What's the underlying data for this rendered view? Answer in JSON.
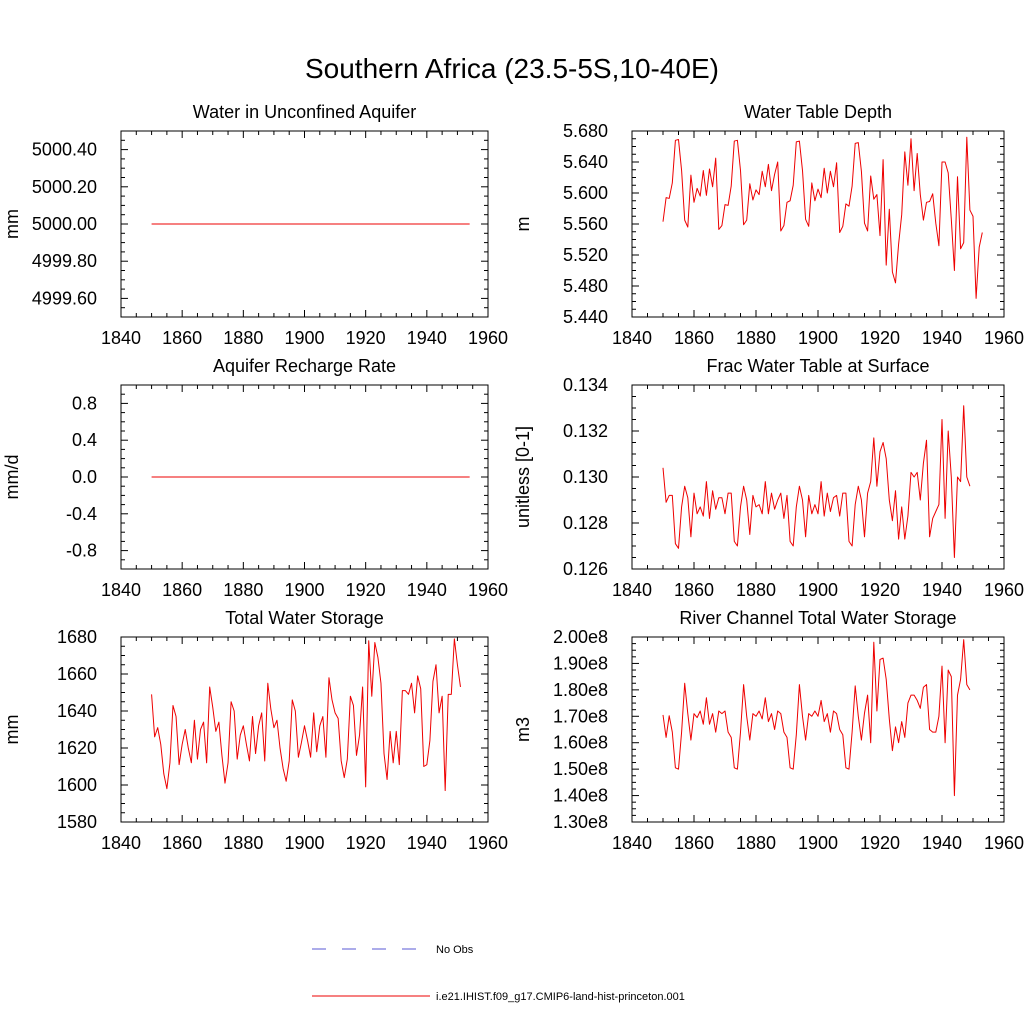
{
  "page": {
    "title": "Southern Africa (23.5-5S,10-40E)"
  },
  "legend": {
    "items": [
      {
        "label": "No Obs",
        "color": "#5a5ad6",
        "dash": "dashed"
      },
      {
        "label": "i.e21.IHIST.f09_g17.CMIP6-land-hist-princeton.001",
        "color": "#ee0000",
        "dash": "solid"
      }
    ]
  },
  "chart_data": [
    {
      "type": "line",
      "title": "Water in Unconfined Aquifer",
      "ylabel": "mm",
      "xlim": [
        1840,
        1960
      ],
      "ylim": [
        4999.5,
        5000.5
      ],
      "yticks": [
        4999.6,
        4999.8,
        5000.0,
        5000.2,
        5000.4
      ],
      "yticklabels": [
        "4999.60",
        "4999.80",
        "5000.00",
        "5000.20",
        "5000.40"
      ],
      "xticks": [
        1840,
        1860,
        1880,
        1900,
        1920,
        1940,
        1960
      ],
      "series": [
        {
          "x_start": 1850,
          "x_end": 1954,
          "constant": 5000.0
        }
      ]
    },
    {
      "type": "line",
      "title": "Water Table Depth",
      "ylabel": "m",
      "xlim": [
        1840,
        1960
      ],
      "ylim": [
        5.44,
        5.68
      ],
      "yticks": [
        5.44,
        5.48,
        5.52,
        5.56,
        5.6,
        5.64,
        5.68
      ],
      "yticklabels": [
        "5.440",
        "5.480",
        "5.520",
        "5.560",
        "5.600",
        "5.640",
        "5.680"
      ],
      "xticks": [
        1840,
        1860,
        1880,
        1900,
        1920,
        1940,
        1960
      ],
      "series": [
        {
          "x_start": 1850,
          "values": [
            5.563,
            5.594,
            5.593,
            5.613,
            5.668,
            5.669,
            5.629,
            5.565,
            5.556,
            5.623,
            5.588,
            5.606,
            5.596,
            5.629,
            5.597,
            5.631,
            5.608,
            5.645,
            5.553,
            5.558,
            5.585,
            5.584,
            5.609,
            5.667,
            5.668,
            5.629,
            5.559,
            5.565,
            5.612,
            5.591,
            5.604,
            5.598,
            5.628,
            5.608,
            5.637,
            5.603,
            5.624,
            5.64,
            5.551,
            5.558,
            5.588,
            5.59,
            5.61,
            5.666,
            5.667,
            5.629,
            5.566,
            5.557,
            5.613,
            5.59,
            5.605,
            5.594,
            5.632,
            5.6,
            5.628,
            5.608,
            5.639,
            5.549,
            5.557,
            5.586,
            5.583,
            5.609,
            5.664,
            5.665,
            5.628,
            5.561,
            5.551,
            5.622,
            5.592,
            5.598,
            5.545,
            5.643,
            5.507,
            5.579,
            5.498,
            5.484,
            5.534,
            5.572,
            5.653,
            5.61,
            5.67,
            5.603,
            5.651,
            5.598,
            5.565,
            5.588,
            5.589,
            5.599,
            5.561,
            5.532,
            5.64,
            5.64,
            5.626,
            5.566,
            5.5,
            5.621,
            5.528,
            5.536,
            5.672,
            5.578,
            5.57,
            5.464,
            5.53,
            5.549
          ]
        }
      ]
    },
    {
      "type": "line",
      "title": "Aquifer Recharge Rate",
      "ylabel": "mm/d",
      "xlim": [
        1840,
        1960
      ],
      "ylim": [
        -1.0,
        1.0
      ],
      "yticks": [
        -0.8,
        -0.4,
        0.0,
        0.4,
        0.8
      ],
      "yticklabels": [
        "-0.8",
        "-0.4",
        "0.0",
        "0.4",
        "0.8"
      ],
      "xticks": [
        1840,
        1860,
        1880,
        1900,
        1920,
        1940,
        1960
      ],
      "series": [
        {
          "x_start": 1850,
          "x_end": 1954,
          "constant": 0.0
        }
      ]
    },
    {
      "type": "line",
      "title": "Frac Water Table at Surface",
      "ylabel": "unitless [0-1]",
      "xlim": [
        1840,
        1960
      ],
      "ylim": [
        0.126,
        0.134
      ],
      "yticks": [
        0.126,
        0.128,
        0.13,
        0.132,
        0.134
      ],
      "yticklabels": [
        "0.126",
        "0.128",
        "0.130",
        "0.132",
        "0.134"
      ],
      "xticks": [
        1840,
        1860,
        1880,
        1900,
        1920,
        1940,
        1960
      ],
      "series": [
        {
          "x_start": 1850,
          "values": [
            0.1304,
            0.1289,
            0.1292,
            0.1292,
            0.1271,
            0.1269,
            0.1287,
            0.1296,
            0.1291,
            0.1274,
            0.1293,
            0.1284,
            0.1287,
            0.1283,
            0.1298,
            0.1282,
            0.1294,
            0.1286,
            0.1291,
            0.1291,
            0.1284,
            0.1293,
            0.1293,
            0.1272,
            0.127,
            0.1287,
            0.1296,
            0.129,
            0.1275,
            0.1292,
            0.1287,
            0.1288,
            0.1284,
            0.1298,
            0.1284,
            0.1293,
            0.1286,
            0.129,
            0.1293,
            0.1282,
            0.1292,
            0.1272,
            0.127,
            0.1287,
            0.1296,
            0.129,
            0.1274,
            0.1292,
            0.1284,
            0.1288,
            0.1284,
            0.1298,
            0.1283,
            0.1293,
            0.1285,
            0.1291,
            0.1292,
            0.1283,
            0.1293,
            0.1293,
            0.1272,
            0.127,
            0.1288,
            0.1296,
            0.129,
            0.1274,
            0.1293,
            0.1298,
            0.1317,
            0.1296,
            0.1311,
            0.1315,
            0.1308,
            0.129,
            0.1281,
            0.1294,
            0.1273,
            0.1287,
            0.1273,
            0.1283,
            0.1302,
            0.13,
            0.1302,
            0.129,
            0.1306,
            0.1316,
            0.1274,
            0.1282,
            0.1285,
            0.1288,
            0.1325,
            0.1282,
            0.132,
            0.13,
            0.1265,
            0.13,
            0.1298,
            0.1331,
            0.13,
            0.1296
          ]
        }
      ]
    },
    {
      "type": "line",
      "title": "Total Water Storage",
      "ylabel": "mm",
      "xlim": [
        1840,
        1960
      ],
      "ylim": [
        1580,
        1680
      ],
      "yticks": [
        1580,
        1600,
        1620,
        1640,
        1660,
        1680
      ],
      "yticklabels": [
        "1580",
        "1600",
        "1620",
        "1640",
        "1660",
        "1680"
      ],
      "xticks": [
        1840,
        1860,
        1880,
        1900,
        1920,
        1940,
        1960
      ],
      "series": [
        {
          "x_start": 1850,
          "values": [
            1649,
            1626,
            1631,
            1622,
            1606,
            1598,
            1612,
            1643,
            1637,
            1611,
            1622,
            1630,
            1620,
            1612,
            1635,
            1614,
            1630,
            1634,
            1612,
            1653,
            1642,
            1629,
            1634,
            1616,
            1601,
            1612,
            1645,
            1640,
            1614,
            1627,
            1632,
            1622,
            1613,
            1637,
            1617,
            1632,
            1639,
            1613,
            1655,
            1641,
            1631,
            1635,
            1620,
            1609,
            1602,
            1613,
            1646,
            1640,
            1615,
            1623,
            1632,
            1624,
            1615,
            1639,
            1618,
            1632,
            1637,
            1615,
            1658,
            1646,
            1639,
            1636,
            1613,
            1604,
            1614,
            1648,
            1643,
            1616,
            1627,
            1653,
            1599,
            1678,
            1648,
            1677,
            1669,
            1655,
            1617,
            1603,
            1629,
            1612,
            1629,
            1611,
            1651,
            1651,
            1649,
            1655,
            1639,
            1659,
            1652,
            1610,
            1611,
            1624,
            1656,
            1665,
            1639,
            1648,
            1597,
            1649,
            1649,
            1679,
            1665,
            1653
          ]
        }
      ]
    },
    {
      "type": "line",
      "title": "River Channel Total Water Storage",
      "ylabel": "m3",
      "xlim": [
        1840,
        1960
      ],
      "ylim": [
        130000000.0,
        200000000.0
      ],
      "yticks": [
        130000000.0,
        140000000.0,
        150000000.0,
        160000000.0,
        170000000.0,
        180000000.0,
        190000000.0,
        200000000.0
      ],
      "yticklabels": [
        "1.30e8",
        "1.40e8",
        "1.50e8",
        "1.60e8",
        "1.70e8",
        "1.80e8",
        "1.90e8",
        "2.00e8"
      ],
      "xticks": [
        1840,
        1860,
        1880,
        1900,
        1920,
        1940,
        1960
      ],
      "series": [
        {
          "x_start": 1850,
          "values": [
            170500000.0,
            162000000.0,
            170200000.0,
            164000000.0,
            150500000.0,
            150000000.0,
            164000000.0,
            182500000.0,
            171000000.0,
            161000000.0,
            171000000.0,
            169500000.0,
            172000000.0,
            167000000.0,
            177000000.0,
            167000000.0,
            171000000.0,
            164000000.0,
            172000000.0,
            171000000.0,
            172000000.0,
            164000000.0,
            162000000.0,
            150500000.0,
            150000000.0,
            164000000.0,
            182000000.0,
            170000000.0,
            161000000.0,
            171000000.0,
            170000000.0,
            172000000.0,
            169000000.0,
            177000000.0,
            168000000.0,
            171000000.0,
            165000000.0,
            172000000.0,
            171000000.0,
            164000000.0,
            162000000.0,
            150500000.0,
            150000000.0,
            163000000.0,
            182000000.0,
            170000000.0,
            161000000.0,
            171000000.0,
            170000000.0,
            172000000.0,
            170000000.0,
            176000000.0,
            168000000.0,
            171000000.0,
            164000000.0,
            172000000.0,
            171000000.0,
            165000000.0,
            163000000.0,
            150500000.0,
            150000000.0,
            164000000.0,
            181500000.0,
            170000000.0,
            161000000.0,
            171200000.0,
            178000000.0,
            160000000.0,
            198000000.0,
            172000000.0,
            191500000.0,
            192000000.0,
            184000000.0,
            169000000.0,
            157000000.0,
            166000000.0,
            160000000.0,
            168000000.0,
            162000000.0,
            175000000.0,
            178000000.0,
            178000000.0,
            176000000.0,
            173000000.0,
            181000000.0,
            182000000.0,
            165000000.0,
            164000000.0,
            164000000.0,
            170000000.0,
            189000000.0,
            160000000.0,
            187500000.0,
            185000000.0,
            140000000.0,
            178000000.0,
            184000000.0,
            199000000.0,
            182000000.0,
            180000000.0
          ]
        }
      ]
    }
  ]
}
